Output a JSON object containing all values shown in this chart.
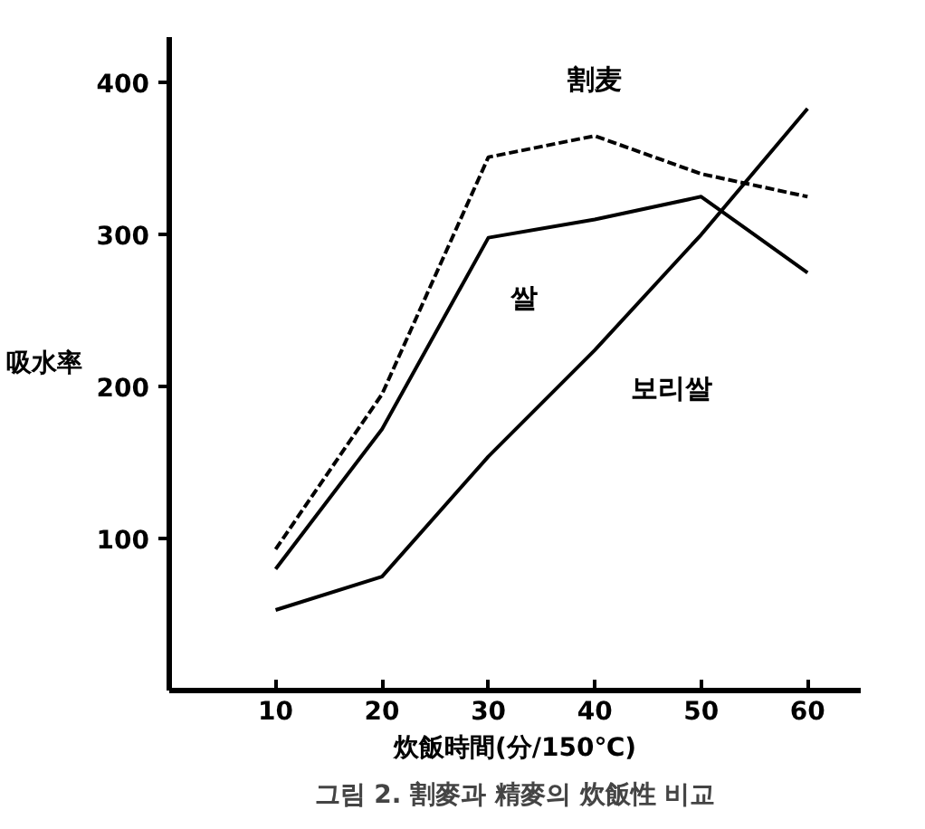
{
  "chart_data": {
    "type": "line",
    "xlabel": "炊飯時間(分/150℃)",
    "ylabel": "吸水率",
    "annotations": [
      "그림 2. 割麥과 精麥의 炊飯性 비교"
    ],
    "x": [
      10,
      20,
      30,
      40,
      50,
      60
    ],
    "xlim": [
      0,
      65
    ],
    "ylim": [
      0,
      430
    ],
    "xticks": [
      10,
      20,
      30,
      40,
      50,
      60
    ],
    "yticks": [
      100,
      200,
      300,
      400
    ],
    "grid": false,
    "marker": "none",
    "series": [
      {
        "name": "割麦",
        "color": "#000000",
        "line_style": "dashed",
        "values": [
          93,
          195,
          351,
          365,
          340,
          325
        ]
      },
      {
        "name": "쌀",
        "color": "#000000",
        "line_style": "solid",
        "values": [
          80,
          172,
          298,
          310,
          325,
          275
        ]
      },
      {
        "name": "보리쌀",
        "color": "#000000",
        "line_style": "solid",
        "values": [
          53,
          75,
          154,
          224,
          300,
          383
        ]
      }
    ]
  }
}
